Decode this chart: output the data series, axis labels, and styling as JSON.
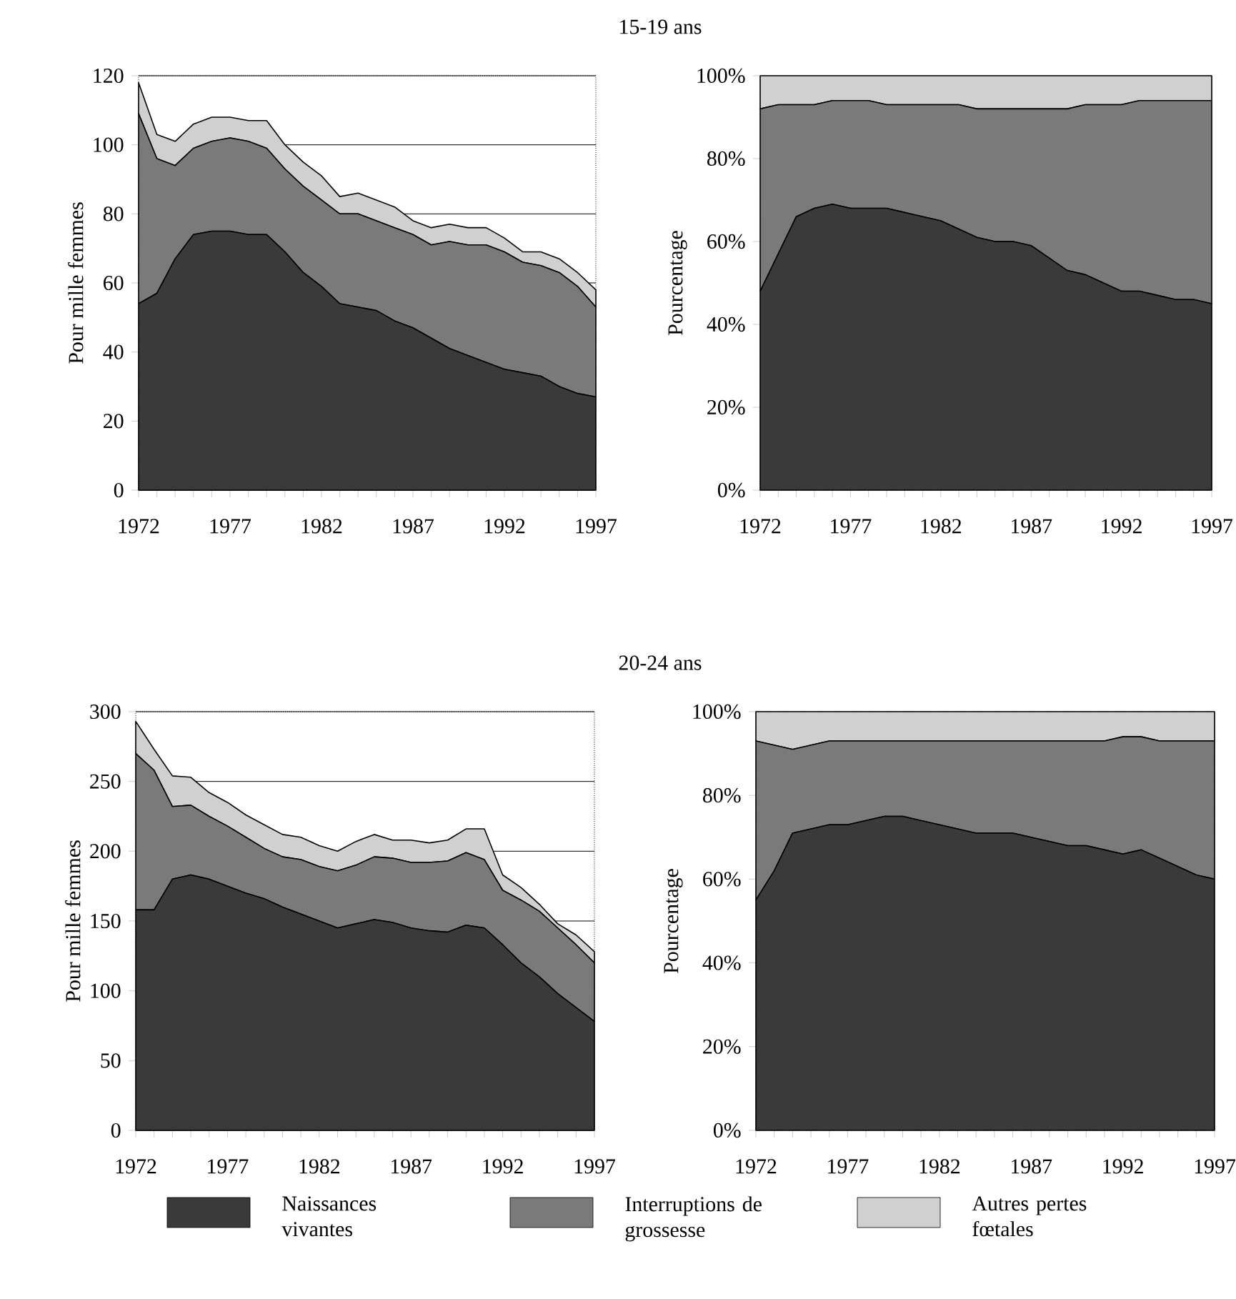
{
  "chart_data": [
    {
      "type": "area",
      "stacked": true,
      "title": "15-19 ans",
      "ylabel": "Pour mille femmes",
      "grid": "y",
      "legend": "bottom",
      "x": [
        1972,
        1973,
        1974,
        1975,
        1976,
        1977,
        1978,
        1979,
        1980,
        1981,
        1982,
        1983,
        1984,
        1985,
        1986,
        1987,
        1988,
        1989,
        1990,
        1991,
        1992,
        1993,
        1994,
        1995,
        1996,
        1997
      ],
      "xlim": [
        1972,
        1997
      ],
      "xticks": [
        1972,
        1977,
        1982,
        1987,
        1992,
        1997
      ],
      "ylim": [
        0,
        120
      ],
      "yticks": [
        0,
        20,
        40,
        60,
        80,
        100,
        120
      ],
      "series": [
        {
          "name": "Naissances vivantes",
          "color": "#3a3a3a",
          "values": [
            54,
            57,
            67,
            74,
            75,
            75,
            74,
            74,
            69,
            63,
            59,
            54,
            53,
            52,
            49,
            47,
            44,
            41,
            39,
            37,
            35,
            34,
            33,
            30,
            28,
            27
          ]
        },
        {
          "name": "Interruptions de grossesse",
          "color": "#7a7a7a",
          "values": [
            55,
            39,
            27,
            25,
            26,
            27,
            27,
            25,
            24,
            25,
            25,
            26,
            27,
            26,
            27,
            27,
            27,
            31,
            32,
            34,
            34,
            32,
            32,
            33,
            31,
            26
          ]
        },
        {
          "name": "Autres pertes fœtales",
          "color": "#d0d0d0",
          "values": [
            9,
            7,
            7,
            7,
            7,
            6,
            6,
            8,
            7,
            7,
            7,
            5,
            6,
            6,
            6,
            4,
            5,
            5,
            5,
            5,
            4,
            3,
            4,
            4,
            4,
            5
          ]
        }
      ]
    },
    {
      "type": "area",
      "stacked": true,
      "ylabel": "Pourcentage",
      "x": [
        1972,
        1973,
        1974,
        1975,
        1976,
        1977,
        1978,
        1979,
        1980,
        1981,
        1982,
        1983,
        1984,
        1985,
        1986,
        1987,
        1988,
        1989,
        1990,
        1991,
        1992,
        1993,
        1994,
        1995,
        1996,
        1997
      ],
      "xlim": [
        1972,
        1997
      ],
      "xticks": [
        1972,
        1977,
        1982,
        1987,
        1992,
        1997
      ],
      "ylim": [
        0,
        100
      ],
      "yticks": [
        {
          "value": 0,
          "label": "0%"
        },
        {
          "value": 20,
          "label": "20%"
        },
        {
          "value": 40,
          "label": "40%"
        },
        {
          "value": 60,
          "label": "60%"
        },
        {
          "value": 80,
          "label": "80%"
        },
        {
          "value": 100,
          "label": "100%"
        }
      ],
      "series": [
        {
          "color": "#3a3a3a",
          "values": [
            48,
            57,
            66,
            68,
            69,
            68,
            68,
            68,
            67,
            66,
            65,
            63,
            61,
            60,
            60,
            59,
            56,
            53,
            52,
            50,
            48,
            48,
            47,
            46,
            46,
            45
          ]
        },
        {
          "color": "#7a7a7a",
          "values": [
            44,
            36,
            27,
            25,
            25,
            26,
            26,
            25,
            26,
            27,
            28,
            30,
            31,
            32,
            32,
            33,
            36,
            39,
            41,
            43,
            45,
            46,
            47,
            48,
            48,
            49
          ]
        },
        {
          "color": "#d0d0d0",
          "values": [
            8,
            7,
            7,
            7,
            6,
            6,
            6,
            7,
            7,
            7,
            7,
            7,
            8,
            8,
            8,
            8,
            8,
            8,
            7,
            7,
            7,
            6,
            6,
            6,
            6,
            6
          ]
        }
      ]
    },
    {
      "type": "area",
      "stacked": true,
      "title": "20-24 ans",
      "ylabel": "Pour mille femmes",
      "grid": "y",
      "x": [
        1972,
        1973,
        1974,
        1975,
        1976,
        1977,
        1978,
        1979,
        1980,
        1981,
        1982,
        1983,
        1984,
        1985,
        1986,
        1987,
        1988,
        1989,
        1990,
        1991,
        1992,
        1993,
        1994,
        1995,
        1996,
        1997
      ],
      "xlim": [
        1972,
        1997
      ],
      "xticks": [
        1972,
        1977,
        1982,
        1987,
        1992,
        1997
      ],
      "ylim": [
        0,
        300
      ],
      "yticks": [
        0,
        50,
        100,
        150,
        200,
        250,
        300
      ],
      "series": [
        {
          "color": "#3a3a3a",
          "values": [
            158,
            158,
            180,
            183,
            180,
            175,
            170,
            166,
            160,
            155,
            150,
            145,
            148,
            151,
            149,
            145,
            143,
            142,
            147,
            145,
            133,
            120,
            110,
            98,
            88,
            78
          ]
        },
        {
          "color": "#7a7a7a",
          "values": [
            112,
            100,
            52,
            50,
            45,
            43,
            40,
            36,
            36,
            39,
            39,
            41,
            42,
            45,
            46,
            47,
            49,
            51,
            52,
            49,
            39,
            45,
            47,
            47,
            45,
            42
          ]
        },
        {
          "color": "#d0d0d0",
          "values": [
            23,
            15,
            22,
            20,
            17,
            17,
            16,
            17,
            16,
            16,
            15,
            14,
            17,
            16,
            13,
            16,
            14,
            15,
            17,
            22,
            11,
            9,
            5,
            3,
            7,
            8
          ]
        }
      ]
    },
    {
      "type": "area",
      "stacked": true,
      "ylabel": "Pourcentage",
      "x": [
        1972,
        1973,
        1974,
        1975,
        1976,
        1977,
        1978,
        1979,
        1980,
        1981,
        1982,
        1983,
        1984,
        1985,
        1986,
        1987,
        1988,
        1989,
        1990,
        1991,
        1992,
        1993,
        1994,
        1995,
        1996,
        1997
      ],
      "xlim": [
        1972,
        1997
      ],
      "xticks": [
        1972,
        1977,
        1982,
        1987,
        1992,
        1997
      ],
      "ylim": [
        0,
        100
      ],
      "yticks": [
        {
          "value": 0,
          "label": "0%"
        },
        {
          "value": 20,
          "label": "20%"
        },
        {
          "value": 40,
          "label": "40%"
        },
        {
          "value": 60,
          "label": "60%"
        },
        {
          "value": 80,
          "label": "80%"
        },
        {
          "value": 100,
          "label": "100%"
        }
      ],
      "series": [
        {
          "color": "#3a3a3a",
          "values": [
            55,
            62,
            71,
            72,
            73,
            73,
            74,
            75,
            75,
            74,
            73,
            72,
            71,
            71,
            71,
            70,
            69,
            68,
            68,
            67,
            66,
            67,
            65,
            63,
            61,
            60
          ]
        },
        {
          "color": "#7a7a7a",
          "values": [
            38,
            30,
            20,
            20,
            20,
            20,
            19,
            18,
            18,
            19,
            20,
            21,
            22,
            22,
            22,
            23,
            24,
            25,
            25,
            26,
            28,
            27,
            28,
            30,
            32,
            33
          ]
        },
        {
          "color": "#d0d0d0",
          "values": [
            7,
            8,
            9,
            8,
            7,
            7,
            7,
            7,
            7,
            7,
            7,
            7,
            7,
            7,
            7,
            7,
            7,
            7,
            7,
            7,
            6,
            6,
            7,
            7,
            7,
            7
          ]
        }
      ]
    }
  ]
}
